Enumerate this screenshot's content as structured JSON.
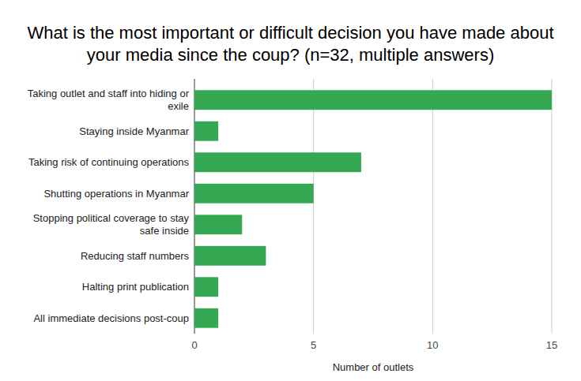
{
  "chart_data": {
    "type": "bar",
    "orientation": "horizontal",
    "title": "What is the most important or difficult decision you have made about your media since the coup? (n=32, multiple answers)",
    "x_label": "Number of outlets",
    "categories": [
      "Taking outlet and staff into hiding or exile",
      "Staying inside Myanmar",
      "Taking risk of continuing operations",
      "Shutting operations in Myanmar",
      "Stopping political coverage to stay safe inside",
      "Reducing staff numbers",
      "Halting print publication",
      "All immediate decisions post-coup"
    ],
    "values": [
      15,
      1,
      7,
      5,
      2,
      3,
      1,
      1
    ],
    "color": "#34a853",
    "xlim": [
      0,
      15
    ],
    "xticks": [
      0,
      5,
      10,
      15
    ],
    "grid": true
  }
}
